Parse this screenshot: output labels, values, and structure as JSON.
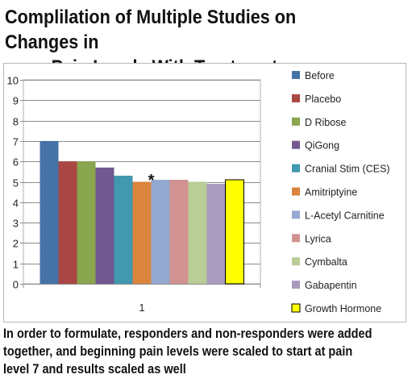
{
  "title": {
    "line1": "Complilation of Multiple Studies on Changes in",
    "line2": "Pain Levels With Treatment"
  },
  "caption": {
    "line1": "In order to formulate, responders and non-responders were added",
    "line2": "together, and beginning pain levels were scaled to start at pain",
    "line3": "level 7 and results scaled as well"
  },
  "chart_data": {
    "type": "bar",
    "categories": [
      "1"
    ],
    "ylim": [
      0,
      10
    ],
    "yticks": [
      0,
      1,
      2,
      3,
      4,
      5,
      6,
      7,
      8,
      9,
      10
    ],
    "grid": true,
    "legend_position": "right",
    "series": [
      {
        "name": "Before",
        "values": [
          7.0
        ],
        "color": "#4572a7"
      },
      {
        "name": "Placebo",
        "values": [
          6.0
        ],
        "color": "#aa4643"
      },
      {
        "name": "D Ribose",
        "values": [
          6.0
        ],
        "color": "#89a54e"
      },
      {
        "name": "QiGong",
        "values": [
          5.7
        ],
        "color": "#71588f"
      },
      {
        "name": "Cranial Stim (CES)",
        "values": [
          5.3
        ],
        "color": "#4198af"
      },
      {
        "name": "Amitriptyine",
        "values": [
          5.0
        ],
        "color": "#db843d"
      },
      {
        "name": "L-Acetyl Carnitine",
        "values": [
          5.1
        ],
        "color": "#93a9cf"
      },
      {
        "name": "Lyrica",
        "values": [
          5.1
        ],
        "color": "#d19392"
      },
      {
        "name": "Cymbalta",
        "values": [
          5.0
        ],
        "color": "#b9cd96"
      },
      {
        "name": "Gabapentin",
        "values": [
          4.9
        ],
        "color": "#a99bbd"
      },
      {
        "name": "Growth Hormone",
        "values": [
          5.1
        ],
        "color": "#ffff00"
      }
    ],
    "annotations": [
      {
        "text": "*",
        "series": "L-Acetyl Carnitine"
      }
    ]
  }
}
